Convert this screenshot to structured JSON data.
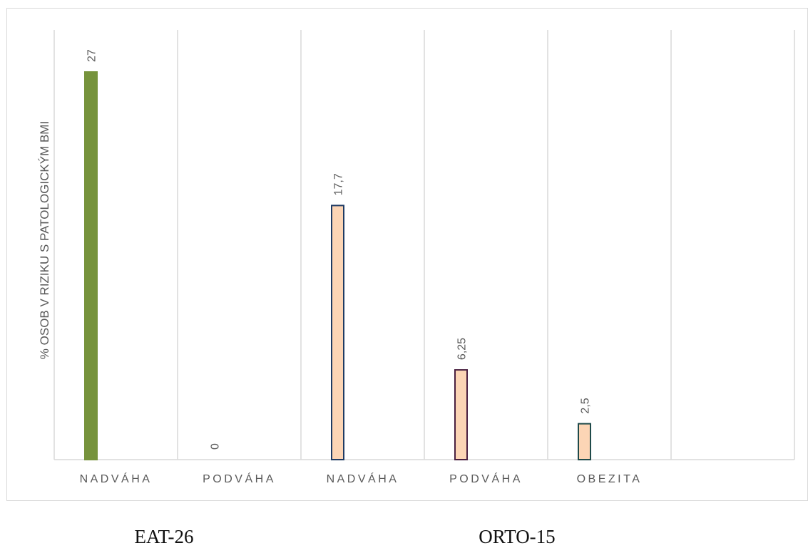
{
  "chart_data": {
    "type": "bar",
    "ylabel": "% OSOB  V RIZIKU S PATOLOGICKÝM BMI",
    "categories": [
      "NADVÁHA",
      "PODVÁHA",
      "NADVÁHA",
      "PODVÁHA",
      "OBEZITA"
    ],
    "values": [
      27,
      0,
      17.7,
      6.25,
      2.5
    ],
    "data_labels": [
      "27",
      "0",
      "17,7",
      "6,25",
      "2,5"
    ],
    "bar_fill": [
      "#76933c",
      "#76933c",
      "#fcd5b5",
      "#fcd5b5",
      "#fcd5b5"
    ],
    "bar_stroke": [
      "#76933c",
      "#76933c",
      "#1f3b63",
      "#4a2040",
      "#1f4a4a"
    ],
    "ylim": [
      0,
      27
    ],
    "grid": "vertical",
    "groups": [
      {
        "label": "EAT-26",
        "categories": [
          "NADVÁHA",
          "PODVÁHA"
        ]
      },
      {
        "label": "ORTO-15",
        "categories": [
          "NADVÁHA",
          "PODVÁHA",
          "OBEZITA"
        ]
      }
    ]
  }
}
